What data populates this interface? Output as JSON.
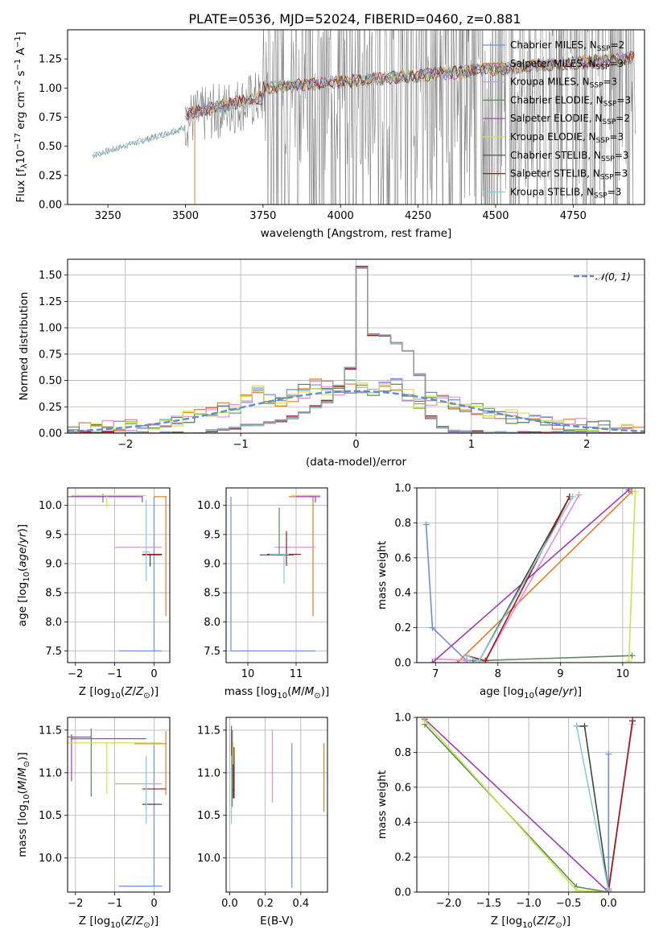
{
  "figure": {
    "title": "PLATE=0536, MJD=52024, FIBERID=0460, z=0.881"
  },
  "series_names": [
    "Chabrier MILES, N$_{SSP}$=2",
    "Salpeter MILES, N$_{SSP}$=3",
    "Kroupa MILES, N$_{SSP}$=3",
    "Chabrier ELODIE, N$_{SSP}$=3",
    "Salpeter ELODIE, N$_{SSP}$=2",
    "Kroupa ELODIE, N$_{SSP}$=3",
    "Chabrier STELIB, N$_{SSP}$=3",
    "Salpeter STELIB, N$_{SSP}$=3",
    "Kroupa STELIB, N$_{SSP}$=3"
  ],
  "legend_main": [
    "Chabrier MILES, N",
    "Salpeter MILES, N",
    "Kroupa MILES, N",
    "Chabrier ELODIE, N",
    "Salpeter ELODIE, N",
    "Kroupa ELODIE, N",
    "Chabrier STELIB, N",
    "Salpeter STELIB, N",
    "Kroupa STELIB, N"
  ],
  "legend_sub": "SSP",
  "legend_n": [
    "=2",
    "=3",
    "=3",
    "=3",
    "=2",
    "=3",
    "=3",
    "=3",
    "=3"
  ],
  "colors": [
    "#6a8fdc",
    "#e07c2a",
    "#e88adb",
    "#5a8a5a",
    "#a03cb4",
    "#c8e64a",
    "#3c4a3c",
    "#a01818",
    "#8cc8d8"
  ],
  "chart_data": [
    {
      "id": "spectrum",
      "type": "line",
      "title": "PLATE=0536, MJD=52024, FIBERID=0460, z=0.881",
      "xlabel": "wavelength [Angstrom, rest frame]",
      "ylabel": "Flux [f",
      "ylabel_parts": [
        "Flux [f",
        "λ",
        "10",
        "−17",
        " erg cm",
        "−2",
        " s",
        "−1",
        " A",
        "−1",
        "]"
      ],
      "xlim": [
        3120,
        4980
      ],
      "ylim": [
        0.0,
        1.5
      ],
      "xticks": [
        "3250",
        "3500",
        "3750",
        "4000",
        "4250",
        "4500",
        "4750"
      ],
      "xtick_values": [
        3250,
        3500,
        3750,
        4000,
        4250,
        4500,
        4750
      ],
      "yticks": [
        "0.00",
        "0.25",
        "0.50",
        "0.75",
        "1.00",
        "1.25"
      ],
      "ytick_values": [
        0.0,
        0.25,
        0.5,
        0.75,
        1.0,
        1.25
      ],
      "data_x_range": [
        3200,
        4950
      ],
      "model_segments": [
        {
          "x": [
            3200,
            3500
          ],
          "y": [
            0.42,
            0.66
          ]
        },
        {
          "x": [
            3500,
            3750
          ],
          "y": [
            0.8,
            0.95
          ]
        },
        {
          "x": [
            3750,
            4950
          ],
          "y": [
            1.0,
            1.28
          ]
        }
      ]
    },
    {
      "id": "residual_hist",
      "type": "line",
      "xlabel": "(data-model)/error",
      "ylabel": "Normed distribution",
      "xlim": [
        -2.5,
        2.5
      ],
      "ylim": [
        0.0,
        1.65
      ],
      "xticks": [
        "−2",
        "−1",
        "0",
        "1",
        "2"
      ],
      "xtick_values": [
        -2,
        -1,
        0,
        1,
        2
      ],
      "yticks": [
        "0.00",
        "0.25",
        "0.50",
        "0.75",
        "1.00",
        "1.25",
        "1.50"
      ],
      "ytick_values": [
        0.0,
        0.25,
        0.5,
        0.75,
        1.0,
        1.25,
        1.5
      ],
      "legend": "𝒩(0, 1)",
      "bin_width": 0.1,
      "bin_start": -2.5,
      "narrow_hist": [
        0,
        0,
        0,
        0,
        0,
        0,
        0,
        0,
        0,
        0,
        0,
        0,
        0.02,
        0.03,
        0.05,
        0.08,
        0.08,
        0.1,
        0.12,
        0.15,
        0.2,
        0.25,
        0.3,
        0.45,
        0.62,
        1.57,
        0.94,
        0.93,
        0.86,
        0.78,
        0.56,
        0.15,
        0.05,
        0.02,
        0.02,
        0.01,
        0,
        0,
        0,
        0,
        0,
        0,
        0,
        0,
        0,
        0,
        0,
        0,
        0,
        0
      ],
      "wide_hist": [
        0.02,
        0.03,
        0.04,
        0.05,
        0.06,
        0.07,
        0.08,
        0.1,
        0.12,
        0.13,
        0.15,
        0.18,
        0.2,
        0.22,
        0.25,
        0.3,
        0.42,
        0.35,
        0.3,
        0.35,
        0.4,
        0.45,
        0.43,
        0.42,
        0.45,
        0.43,
        0.4,
        0.43,
        0.45,
        0.37,
        0.3,
        0.32,
        0.3,
        0.28,
        0.25,
        0.23,
        0.2,
        0.18,
        0.16,
        0.14,
        0.12,
        0.1,
        0.09,
        0.08,
        0.07,
        0.06,
        0.05,
        0.04,
        0.03,
        0.02
      ]
    },
    {
      "id": "age_vs_Z",
      "type": "scatter",
      "xlabel": "Z [log",
      "ylabel": "age  [log",
      "xlim": [
        -2.2,
        0.4
      ],
      "ylim": [
        7.3,
        10.3
      ],
      "xticks": [
        "−2",
        "−1",
        "0"
      ],
      "xtick_values": [
        -2,
        -1,
        0
      ],
      "yticks": [
        "7.5",
        "8.0",
        "8.5",
        "9.0",
        "9.5",
        "10.0"
      ],
      "ytick_values": [
        7.5,
        8.0,
        8.5,
        9.0,
        9.5,
        10.0
      ],
      "points": [
        {
          "x": 0.0,
          "xerr": [
            0.9,
            0.2
          ],
          "y": 7.5,
          "yerr": [
            0.0,
            2.65
          ],
          "c": 0
        },
        {
          "x": 0.3,
          "xerr": [
            0.3,
            0.0
          ],
          "y": 10.15,
          "yerr": [
            2.05,
            0.0
          ],
          "c": 1
        },
        {
          "x": -0.1,
          "xerr": [
            0.9,
            0.3
          ],
          "y": 9.28,
          "yerr": [
            0.0,
            0.0
          ],
          "c": 2
        },
        {
          "x": -1.3,
          "xerr": [
            0.9,
            0.9
          ],
          "y": 10.15,
          "yerr": [
            0.1,
            0.05
          ],
          "c": 3
        },
        {
          "x": -0.3,
          "xerr": [
            1.8,
            0.0
          ],
          "y": 10.15,
          "yerr": [
            0.1,
            0.0
          ],
          "c": 4
        },
        {
          "x": -1.2,
          "xerr": [
            0.9,
            1.0
          ],
          "y": 10.17,
          "yerr": [
            0.2,
            0.0
          ],
          "c": 5
        },
        {
          "x": -0.1,
          "xerr": [
            0.2,
            0.3
          ],
          "y": 9.15,
          "yerr": [
            0.2,
            0.0
          ],
          "c": 6
        },
        {
          "x": -0.1,
          "xerr": [
            0.2,
            0.3
          ],
          "y": 9.16,
          "yerr": [
            0.0,
            0.0
          ],
          "c": 7
        },
        {
          "x": -0.2,
          "xerr": [
            0.1,
            0.1
          ],
          "y": 9.2,
          "yerr": [
            0.5,
            0.9
          ],
          "c": 8
        }
      ]
    },
    {
      "id": "age_vs_mass",
      "type": "scatter",
      "xlabel": "mass [log",
      "ylabel": "",
      "xlim": [
        9.55,
        11.65
      ],
      "ylim": [
        7.3,
        10.3
      ],
      "xticks": [
        "10",
        "11"
      ],
      "xtick_values": [
        10,
        11
      ],
      "yticks": [
        "7.5",
        "8.0",
        "8.5",
        "9.0",
        "9.5",
        "10.0"
      ],
      "ytick_values": [
        7.5,
        8.0,
        8.5,
        9.0,
        9.5,
        10.0
      ],
      "points": [
        {
          "x": 9.65,
          "xerr": [
            0.0,
            1.75
          ],
          "y": 7.5,
          "yerr": [
            0.0,
            2.65
          ],
          "c": 0
        },
        {
          "x": 11.35,
          "xerr": [
            0.5,
            0.0
          ],
          "y": 10.15,
          "yerr": [
            2.05,
            0.0
          ],
          "c": 1
        },
        {
          "x": 10.85,
          "xerr": [
            0.3,
            0.55
          ],
          "y": 9.28,
          "yerr": [
            0.0,
            0.0
          ],
          "c": 2
        },
        {
          "x": 10.65,
          "xerr": [
            0.0,
            0.0
          ],
          "y": 9.95,
          "yerr": [
            0.8,
            0.0
          ],
          "c": 3
        },
        {
          "x": 11.4,
          "xerr": [
            0.4,
            0.1
          ],
          "y": 10.15,
          "yerr": [
            0.1,
            0.0
          ],
          "c": 4
        },
        {
          "x": 11.4,
          "xerr": [
            0.5,
            0.1
          ],
          "y": 10.17,
          "yerr": [
            0.0,
            0.0
          ],
          "c": 5
        },
        {
          "x": 10.65,
          "xerr": [
            0.4,
            0.3
          ],
          "y": 9.15,
          "yerr": [
            0.0,
            0.0
          ],
          "c": 6
        },
        {
          "x": 10.8,
          "xerr": [
            0.4,
            0.3
          ],
          "y": 9.16,
          "yerr": [
            0.2,
            0.4
          ],
          "c": 7
        },
        {
          "x": 10.75,
          "xerr": [
            0.3,
            0.1
          ],
          "y": 9.16,
          "yerr": [
            0.5,
            0.0
          ],
          "c": 8
        }
      ]
    },
    {
      "id": "weight_vs_age",
      "type": "line",
      "xlabel": "age  [log",
      "ylabel": "mass weight",
      "xlim": [
        6.7,
        10.35
      ],
      "ylim": [
        0.0,
        1.0
      ],
      "xticks": [
        "7",
        "8",
        "9",
        "10"
      ],
      "xtick_values": [
        7,
        8,
        9,
        10
      ],
      "yticks": [
        "0.0",
        "0.2",
        "0.4",
        "0.6",
        "0.8",
        "1.0"
      ],
      "ytick_values": [
        0.0,
        0.2,
        0.4,
        0.6,
        0.8,
        1.0
      ],
      "lines": [
        {
          "c": 0,
          "x": [
            6.85,
            6.95,
            7.5
          ],
          "y": [
            0.79,
            0.2,
            0.01
          ]
        },
        {
          "c": 1,
          "x": [
            7.35,
            10.15
          ],
          "y": [
            0.0,
            0.98
          ]
        },
        {
          "c": 2,
          "x": [
            7.0,
            7.8,
            9.3
          ],
          "y": [
            0.02,
            0.01,
            0.96
          ]
        },
        {
          "c": 3,
          "x": [
            7.6,
            10.15
          ],
          "y": [
            0.01,
            0.04
          ]
        },
        {
          "c": 4,
          "x": [
            6.95,
            10.1
          ],
          "y": [
            0.0,
            0.99
          ]
        },
        {
          "c": 5,
          "x": [
            10.1,
            10.2
          ],
          "y": [
            0.01,
            0.98
          ]
        },
        {
          "c": 6,
          "x": [
            7.7,
            9.15
          ],
          "y": [
            0.01,
            0.95
          ]
        },
        {
          "c": 7,
          "x": [
            7.5,
            7.8,
            9.15
          ],
          "y": [
            0.04,
            0.01,
            0.95
          ]
        },
        {
          "c": 8,
          "x": [
            7.5,
            7.7,
            9.2
          ],
          "y": [
            0.04,
            0.01,
            0.95
          ]
        }
      ]
    },
    {
      "id": "mass_vs_Z",
      "type": "scatter",
      "xlabel": "Z [log",
      "ylabel": "mass [log",
      "xlim": [
        -2.2,
        0.4
      ],
      "ylim": [
        9.6,
        11.65
      ],
      "xticks": [
        "−2",
        "−1",
        "0"
      ],
      "xtick_values": [
        -2,
        -1,
        0
      ],
      "yticks": [
        "10.0",
        "10.5",
        "11.0",
        "11.5"
      ],
      "ytick_values": [
        10.0,
        10.5,
        11.0,
        11.5
      ],
      "points": [
        {
          "x": 0.0,
          "xerr": [
            0.9,
            0.2
          ],
          "y": 9.67,
          "yerr": [
            0.0,
            1.65
          ],
          "c": 0
        },
        {
          "x": 0.3,
          "xerr": [
            0.8,
            0.0
          ],
          "y": 11.34,
          "yerr": [
            0.6,
            0.15
          ],
          "c": 1
        },
        {
          "x": -0.1,
          "xerr": [
            0.9,
            0.3
          ],
          "y": 10.87,
          "yerr": [
            0.0,
            0.0
          ],
          "c": 2
        },
        {
          "x": -1.6,
          "xerr": [
            0.6,
            0.0
          ],
          "y": 11.42,
          "yerr": [
            0.7,
            0.1
          ],
          "c": 3
        },
        {
          "x": -2.1,
          "xerr": [
            0.0,
            1.9
          ],
          "y": 11.4,
          "yerr": [
            0.5,
            0.05
          ],
          "c": 4
        },
        {
          "x": -1.2,
          "xerr": [
            1.0,
            1.4
          ],
          "y": 11.35,
          "yerr": [
            0.6,
            0.0
          ],
          "c": 5
        },
        {
          "x": -0.1,
          "xerr": [
            0.2,
            0.3
          ],
          "y": 10.63,
          "yerr": [
            0.0,
            0.0
          ],
          "c": 6
        },
        {
          "x": 0.0,
          "xerr": [
            0.3,
            0.3
          ],
          "y": 10.81,
          "yerr": [
            0.0,
            0.0
          ],
          "c": 7
        },
        {
          "x": -0.2,
          "xerr": [
            0.0,
            0.0
          ],
          "y": 10.6,
          "yerr": [
            0.2,
            0.6
          ],
          "c": 8
        }
      ]
    },
    {
      "id": "mass_vs_ebv",
      "type": "scatter",
      "xlabel": "E(B-V)",
      "ylabel": "",
      "xlim": [
        -0.02,
        0.55
      ],
      "ylim": [
        9.6,
        11.65
      ],
      "xticks": [
        "0.0",
        "0.2",
        "0.4"
      ],
      "xtick_values": [
        0.0,
        0.2,
        0.4
      ],
      "yticks": [
        "10.0",
        "10.5",
        "11.0",
        "11.5"
      ],
      "ytick_values": [
        10.0,
        10.5,
        11.0,
        11.5
      ],
      "points": [
        {
          "x": 0.35,
          "y": 10.0,
          "yerr": [
            0.35,
            1.35
          ],
          "c": 0
        },
        {
          "x": 0.53,
          "y": 11.34,
          "yerr": [
            0.8,
            0.0
          ],
          "c": 1
        },
        {
          "x": 0.24,
          "y": 11.5,
          "yerr": [
            0.85,
            0.0
          ],
          "c": 2
        },
        {
          "x": 0.015,
          "y": 11.3,
          "yerr": [
            0.7,
            0.2
          ],
          "c": 3
        },
        {
          "x": 0.01,
          "y": 11.4,
          "yerr": [
            0.5,
            0.15
          ],
          "c": 4
        },
        {
          "x": 0.02,
          "y": 11.35,
          "yerr": [
            0.5,
            0.0
          ],
          "c": 5
        },
        {
          "x": 0.02,
          "y": 10.8,
          "yerr": [
            0.1,
            0.3
          ],
          "c": 6
        },
        {
          "x": 0.025,
          "y": 10.8,
          "yerr": [
            0.1,
            0.5
          ],
          "c": 7
        },
        {
          "x": 0.01,
          "y": 10.6,
          "yerr": [
            0.2,
            0.6
          ],
          "c": 8
        }
      ]
    },
    {
      "id": "weight_vs_Z",
      "type": "line",
      "xlabel": "Z [log",
      "ylabel": "mass weight",
      "xlim": [
        -2.4,
        0.45
      ],
      "ylim": [
        0.0,
        1.0
      ],
      "xticks": [
        "−2.0",
        "−1.5",
        "−1.0",
        "−0.5",
        "0.0"
      ],
      "xtick_values": [
        -2.0,
        -1.5,
        -1.0,
        -0.5,
        0.0
      ],
      "yticks": [
        "0.0",
        "0.2",
        "0.4",
        "0.6",
        "0.8",
        "1.0"
      ],
      "ytick_values": [
        0.0,
        0.2,
        0.4,
        0.6,
        0.8,
        1.0
      ],
      "lines": [
        {
          "c": 0,
          "x": [
            0.0,
            0.0,
            0.0
          ],
          "y": [
            0.79,
            0.2,
            0.01
          ]
        },
        {
          "c": 1,
          "x": [
            0.0,
            0.3
          ],
          "y": [
            0.0,
            0.98
          ]
        },
        {
          "c": 2,
          "x": [
            0.0,
            0.3
          ],
          "y": [
            0.02,
            0.96
          ]
        },
        {
          "c": 3,
          "x": [
            -2.3,
            -0.4,
            0.0
          ],
          "y": [
            0.96,
            0.03,
            0.0
          ]
        },
        {
          "c": 4,
          "x": [
            -2.3,
            0.0
          ],
          "y": [
            0.99,
            0.0
          ]
        },
        {
          "c": 5,
          "x": [
            -2.3,
            -0.4,
            0.0
          ],
          "y": [
            0.98,
            0.01,
            0.0
          ]
        },
        {
          "c": 6,
          "x": [
            -0.4,
            -0.3,
            0.0
          ],
          "y": [
            0.95,
            0.95,
            0.01
          ]
        },
        {
          "c": 7,
          "x": [
            0.0,
            0.3
          ],
          "y": [
            0.01,
            0.98
          ]
        },
        {
          "c": 8,
          "x": [
            -0.4,
            0.0
          ],
          "y": [
            0.95,
            0.01
          ]
        }
      ]
    }
  ]
}
